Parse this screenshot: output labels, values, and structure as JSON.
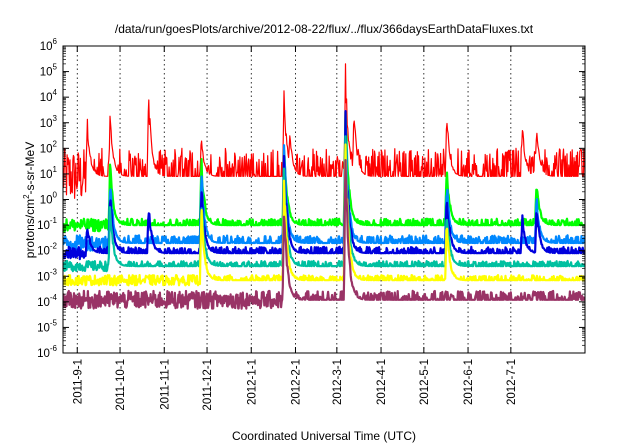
{
  "chart_data": {
    "type": "line",
    "title": "/data/run/goesPlots/archive/2012-08-22/flux/../flux/366daysEarthDataFluxes.txt",
    "xlabel": "Coordinated Universal Time (UTC)",
    "ylabel": "protons/cm2-s-sr-MeV",
    "ylabel_parts": [
      "protons/cm",
      "2",
      "-s-sr-MeV"
    ],
    "yscale": "log",
    "ylim": [
      1e-06,
      1000000.0
    ],
    "xlim": [
      "2011-08-22",
      "2012-08-22"
    ],
    "y_ticks": [
      {
        "base": "10",
        "exp": "-6",
        "value": 1e-06
      },
      {
        "base": "10",
        "exp": "-5",
        "value": 1e-05
      },
      {
        "base": "10",
        "exp": "-4",
        "value": 0.0001
      },
      {
        "base": "10",
        "exp": "-3",
        "value": 0.001
      },
      {
        "base": "10",
        "exp": "-2",
        "value": 0.01
      },
      {
        "base": "10",
        "exp": "-1",
        "value": 0.1
      },
      {
        "base": "10",
        "exp": "0",
        "value": 1
      },
      {
        "base": "10",
        "exp": "1",
        "value": 10
      },
      {
        "base": "10",
        "exp": "2",
        "value": 100
      },
      {
        "base": "10",
        "exp": "3",
        "value": 1000
      },
      {
        "base": "10",
        "exp": "4",
        "value": 10000
      },
      {
        "base": "10",
        "exp": "5",
        "value": 100000
      },
      {
        "base": "10",
        "exp": "6",
        "value": 1000000
      }
    ],
    "x_ticks": [
      {
        "label": "2011-9-1",
        "date": "2011-09-01"
      },
      {
        "label": "2011-10-1",
        "date": "2011-10-01"
      },
      {
        "label": "2011-11-1",
        "date": "2011-11-01"
      },
      {
        "label": "2011-12-1",
        "date": "2011-12-01"
      },
      {
        "label": "2012-1-1",
        "date": "2012-01-01"
      },
      {
        "label": "2012-2-1",
        "date": "2012-02-01"
      },
      {
        "label": "2012-3-1",
        "date": "2012-03-01"
      },
      {
        "label": "2012-4-1",
        "date": "2012-04-01"
      },
      {
        "label": "2012-5-1",
        "date": "2012-05-01"
      },
      {
        "label": "2012-6-1",
        "date": "2012-06-01"
      },
      {
        "label": "2012-7-1",
        "date": "2012-07-01"
      }
    ],
    "grid": true,
    "legend": "none",
    "series": [
      {
        "color": "#ff0000",
        "baseline": 8,
        "spread": 1.1,
        "events": [
          {
            "date": "2011-09-08",
            "peak": 1000
          },
          {
            "date": "2011-09-24",
            "peak": 2000
          },
          {
            "date": "2011-10-21",
            "peak": 10000
          },
          {
            "date": "2011-11-27",
            "peak": 200
          },
          {
            "date": "2012-01-24",
            "peak": 10000
          },
          {
            "date": "2012-01-28",
            "peak": 400
          },
          {
            "date": "2012-03-07",
            "peak": 90000
          },
          {
            "date": "2012-03-13",
            "peak": 3000
          },
          {
            "date": "2012-05-17",
            "peak": 2000
          },
          {
            "date": "2012-07-09",
            "peak": 700
          },
          {
            "date": "2012-07-19",
            "peak": 600
          }
        ]
      },
      {
        "color": "#00ff00",
        "baseline": 0.1,
        "spread": 0.25,
        "events": [
          {
            "date": "2011-09-24",
            "peak": 20
          },
          {
            "date": "2011-11-27",
            "peak": 30
          },
          {
            "date": "2012-01-24",
            "peak": 200
          },
          {
            "date": "2012-03-07",
            "peak": 3000
          },
          {
            "date": "2012-05-17",
            "peak": 20
          },
          {
            "date": "2012-07-19",
            "peak": 5
          }
        ]
      },
      {
        "color": "#0088ff",
        "baseline": 0.02,
        "spread": 0.3,
        "events": [
          {
            "date": "2011-09-24",
            "peak": 5
          },
          {
            "date": "2011-11-27",
            "peak": 10
          },
          {
            "date": "2012-01-24",
            "peak": 100
          },
          {
            "date": "2012-03-07",
            "peak": 1000
          },
          {
            "date": "2012-05-17",
            "peak": 5
          },
          {
            "date": "2012-07-19",
            "peak": 1
          }
        ]
      },
      {
        "color": "#0000dd",
        "baseline": 0.008,
        "spread": 0.25,
        "events": [
          {
            "date": "2011-09-08",
            "peak": 0.1
          },
          {
            "date": "2011-09-24",
            "peak": 2
          },
          {
            "date": "2011-10-21",
            "peak": 0.5
          },
          {
            "date": "2011-11-27",
            "peak": 3
          },
          {
            "date": "2012-01-24",
            "peak": 50
          },
          {
            "date": "2012-03-07",
            "peak": 800
          },
          {
            "date": "2012-05-17",
            "peak": 2
          },
          {
            "date": "2012-07-09",
            "peak": 0.2
          },
          {
            "date": "2012-07-19",
            "peak": 0.5
          }
        ]
      },
      {
        "color": "#00c0a0",
        "baseline": 0.0025,
        "spread": 0.2,
        "events": [
          {
            "date": "2011-09-24",
            "peak": 0.5
          },
          {
            "date": "2011-11-27",
            "peak": 1
          },
          {
            "date": "2012-01-24",
            "peak": 10
          },
          {
            "date": "2012-03-07",
            "peak": 300
          },
          {
            "date": "2012-05-17",
            "peak": 0.5
          }
        ]
      },
      {
        "color": "#ffff00",
        "baseline": 0.0007,
        "spread": 0.2,
        "events": [
          {
            "date": "2011-11-27",
            "peak": 0.3
          },
          {
            "date": "2012-01-24",
            "peak": 3
          },
          {
            "date": "2012-03-07",
            "peak": 100
          },
          {
            "date": "2012-05-17",
            "peak": 0.1
          }
        ]
      },
      {
        "color": "#993366",
        "baseline": 0.00012,
        "spread": 0.35,
        "events": [
          {
            "date": "2012-01-24",
            "peak": 0.5
          },
          {
            "date": "2012-03-07",
            "peak": 30
          }
        ]
      }
    ]
  }
}
